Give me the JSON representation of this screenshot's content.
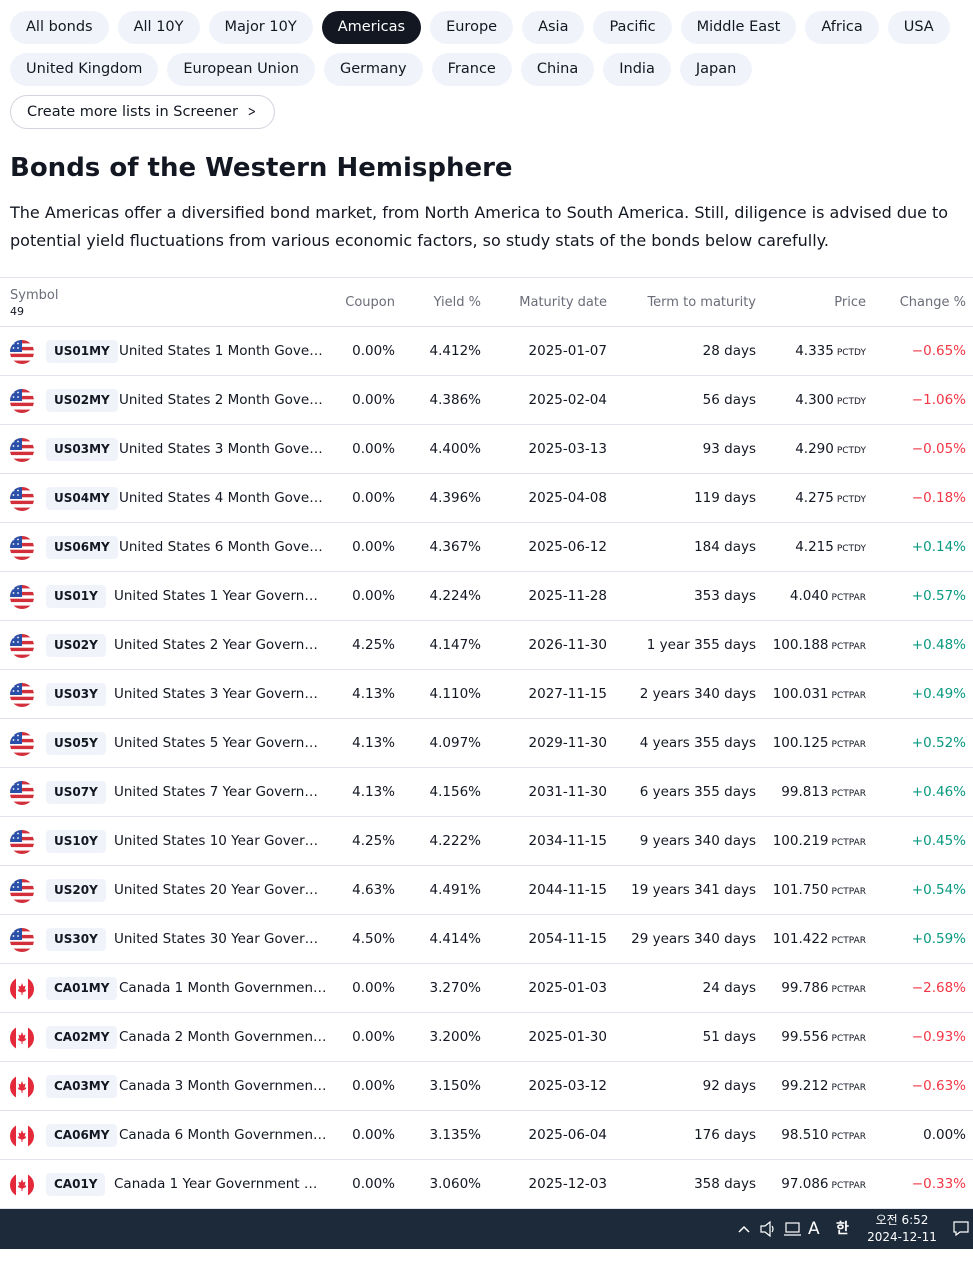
{
  "chips_row1": [
    "All bonds",
    "All 10Y",
    "Major 10Y",
    "Americas",
    "Europe",
    "Asia",
    "Pacific",
    "Middle East",
    "Africa",
    "USA"
  ],
  "chips_row2": [
    "United Kingdom",
    "European Union",
    "Germany",
    "France",
    "China",
    "India",
    "Japan"
  ],
  "active_chip": "Americas",
  "screener_button": "Create more lists in Screener",
  "title": "Bonds of the Western Hemisphere",
  "description": "The Americas offer a diversified bond market, from North America to South America. Still, diligence is advised due to potential yield fluctuations from various economic factors, so study stats of the bonds below carefully.",
  "table": {
    "headers": {
      "symbol": "Symbol",
      "count": "49",
      "coupon": "Coupon",
      "yield": "Yield %",
      "maturity": "Maturity date",
      "term": "Term to maturity",
      "price": "Price",
      "change": "Change %"
    },
    "rows": [
      {
        "flag": "us-flag-icon",
        "ticker": "US01MY",
        "name": "United States 1 Month Gove…",
        "coupon": "0.00%",
        "yield": "4.412%",
        "maturity": "2025-01-07",
        "term": "28 days",
        "price": "4.335",
        "unit": "PCTDY",
        "change": "−0.65%",
        "dir": "neg"
      },
      {
        "flag": "us-flag-icon",
        "ticker": "US02MY",
        "name": "United States 2 Month Gove…",
        "coupon": "0.00%",
        "yield": "4.386%",
        "maturity": "2025-02-04",
        "term": "56 days",
        "price": "4.300",
        "unit": "PCTDY",
        "change": "−1.06%",
        "dir": "neg"
      },
      {
        "flag": "us-flag-icon",
        "ticker": "US03MY",
        "name": "United States 3 Month Gove…",
        "coupon": "0.00%",
        "yield": "4.400%",
        "maturity": "2025-03-13",
        "term": "93 days",
        "price": "4.290",
        "unit": "PCTDY",
        "change": "−0.05%",
        "dir": "neg"
      },
      {
        "flag": "us-flag-icon",
        "ticker": "US04MY",
        "name": "United States 4 Month Gove…",
        "coupon": "0.00%",
        "yield": "4.396%",
        "maturity": "2025-04-08",
        "term": "119 days",
        "price": "4.275",
        "unit": "PCTDY",
        "change": "−0.18%",
        "dir": "neg"
      },
      {
        "flag": "us-flag-icon",
        "ticker": "US06MY",
        "name": "United States 6 Month Gove…",
        "coupon": "0.00%",
        "yield": "4.367%",
        "maturity": "2025-06-12",
        "term": "184 days",
        "price": "4.215",
        "unit": "PCTDY",
        "change": "+0.14%",
        "dir": "pos"
      },
      {
        "flag": "us-flag-icon",
        "ticker": "US01Y",
        "name": "United States 1 Year Govern…",
        "coupon": "0.00%",
        "yield": "4.224%",
        "maturity": "2025-11-28",
        "term": "353 days",
        "price": "4.040",
        "unit": "PCTPAR",
        "change": "+0.57%",
        "dir": "pos"
      },
      {
        "flag": "us-flag-icon",
        "ticker": "US02Y",
        "name": "United States 2 Year Govern…",
        "coupon": "4.25%",
        "yield": "4.147%",
        "maturity": "2026-11-30",
        "term": "1 year 355 days",
        "price": "100.188",
        "unit": "PCTPAR",
        "change": "+0.48%",
        "dir": "pos"
      },
      {
        "flag": "us-flag-icon",
        "ticker": "US03Y",
        "name": "United States 3 Year Govern…",
        "coupon": "4.13%",
        "yield": "4.110%",
        "maturity": "2027-11-15",
        "term": "2 years 340 days",
        "price": "100.031",
        "unit": "PCTPAR",
        "change": "+0.49%",
        "dir": "pos"
      },
      {
        "flag": "us-flag-icon",
        "ticker": "US05Y",
        "name": "United States 5 Year Govern…",
        "coupon": "4.13%",
        "yield": "4.097%",
        "maturity": "2029-11-30",
        "term": "4 years 355 days",
        "price": "100.125",
        "unit": "PCTPAR",
        "change": "+0.52%",
        "dir": "pos"
      },
      {
        "flag": "us-flag-icon",
        "ticker": "US07Y",
        "name": "United States 7 Year Govern…",
        "coupon": "4.13%",
        "yield": "4.156%",
        "maturity": "2031-11-30",
        "term": "6 years 355 days",
        "price": "99.813",
        "unit": "PCTPAR",
        "change": "+0.46%",
        "dir": "pos"
      },
      {
        "flag": "us-flag-icon",
        "ticker": "US10Y",
        "name": "United States 10 Year Gover…",
        "coupon": "4.25%",
        "yield": "4.222%",
        "maturity": "2034-11-15",
        "term": "9 years 340 days",
        "price": "100.219",
        "unit": "PCTPAR",
        "change": "+0.45%",
        "dir": "pos"
      },
      {
        "flag": "us-flag-icon",
        "ticker": "US20Y",
        "name": "United States 20 Year Gover…",
        "coupon": "4.63%",
        "yield": "4.491%",
        "maturity": "2044-11-15",
        "term": "19 years 341 days",
        "price": "101.750",
        "unit": "PCTPAR",
        "change": "+0.54%",
        "dir": "pos"
      },
      {
        "flag": "us-flag-icon",
        "ticker": "US30Y",
        "name": "United States 30 Year Gover…",
        "coupon": "4.50%",
        "yield": "4.414%",
        "maturity": "2054-11-15",
        "term": "29 years 340 days",
        "price": "101.422",
        "unit": "PCTPAR",
        "change": "+0.59%",
        "dir": "pos"
      },
      {
        "flag": "ca-flag-icon",
        "ticker": "CA01MY",
        "name": "Canada 1 Month Governmen…",
        "coupon": "0.00%",
        "yield": "3.270%",
        "maturity": "2025-01-03",
        "term": "24 days",
        "price": "99.786",
        "unit": "PCTPAR",
        "change": "−2.68%",
        "dir": "neg"
      },
      {
        "flag": "ca-flag-icon",
        "ticker": "CA02MY",
        "name": "Canada 2 Month Governmen…",
        "coupon": "0.00%",
        "yield": "3.200%",
        "maturity": "2025-01-30",
        "term": "51 days",
        "price": "99.556",
        "unit": "PCTPAR",
        "change": "−0.93%",
        "dir": "neg"
      },
      {
        "flag": "ca-flag-icon",
        "ticker": "CA03MY",
        "name": "Canada 3 Month Governmen…",
        "coupon": "0.00%",
        "yield": "3.150%",
        "maturity": "2025-03-12",
        "term": "92 days",
        "price": "99.212",
        "unit": "PCTPAR",
        "change": "−0.63%",
        "dir": "neg"
      },
      {
        "flag": "ca-flag-icon",
        "ticker": "CA06MY",
        "name": "Canada 6 Month Governmen…",
        "coupon": "0.00%",
        "yield": "3.135%",
        "maturity": "2025-06-04",
        "term": "176 days",
        "price": "98.510",
        "unit": "PCTPAR",
        "change": "0.00%",
        "dir": "zero"
      },
      {
        "flag": "ca-flag-icon",
        "ticker": "CA01Y",
        "name": "Canada 1 Year Government …",
        "coupon": "0.00%",
        "yield": "3.060%",
        "maturity": "2025-12-03",
        "term": "358 days",
        "price": "97.086",
        "unit": "PCTPAR",
        "change": "−0.33%",
        "dir": "neg"
      }
    ]
  },
  "taskbar": {
    "ime_letter": "A",
    "ime_hangul": "한",
    "time": "오전 6:52",
    "date": "2024-12-11"
  },
  "colors": {
    "positive": "#089981",
    "negative": "#f23645",
    "active_chip_bg": "#131722",
    "chip_bg": "#f0f3fa",
    "taskbar_bg": "#1c2a3a"
  }
}
